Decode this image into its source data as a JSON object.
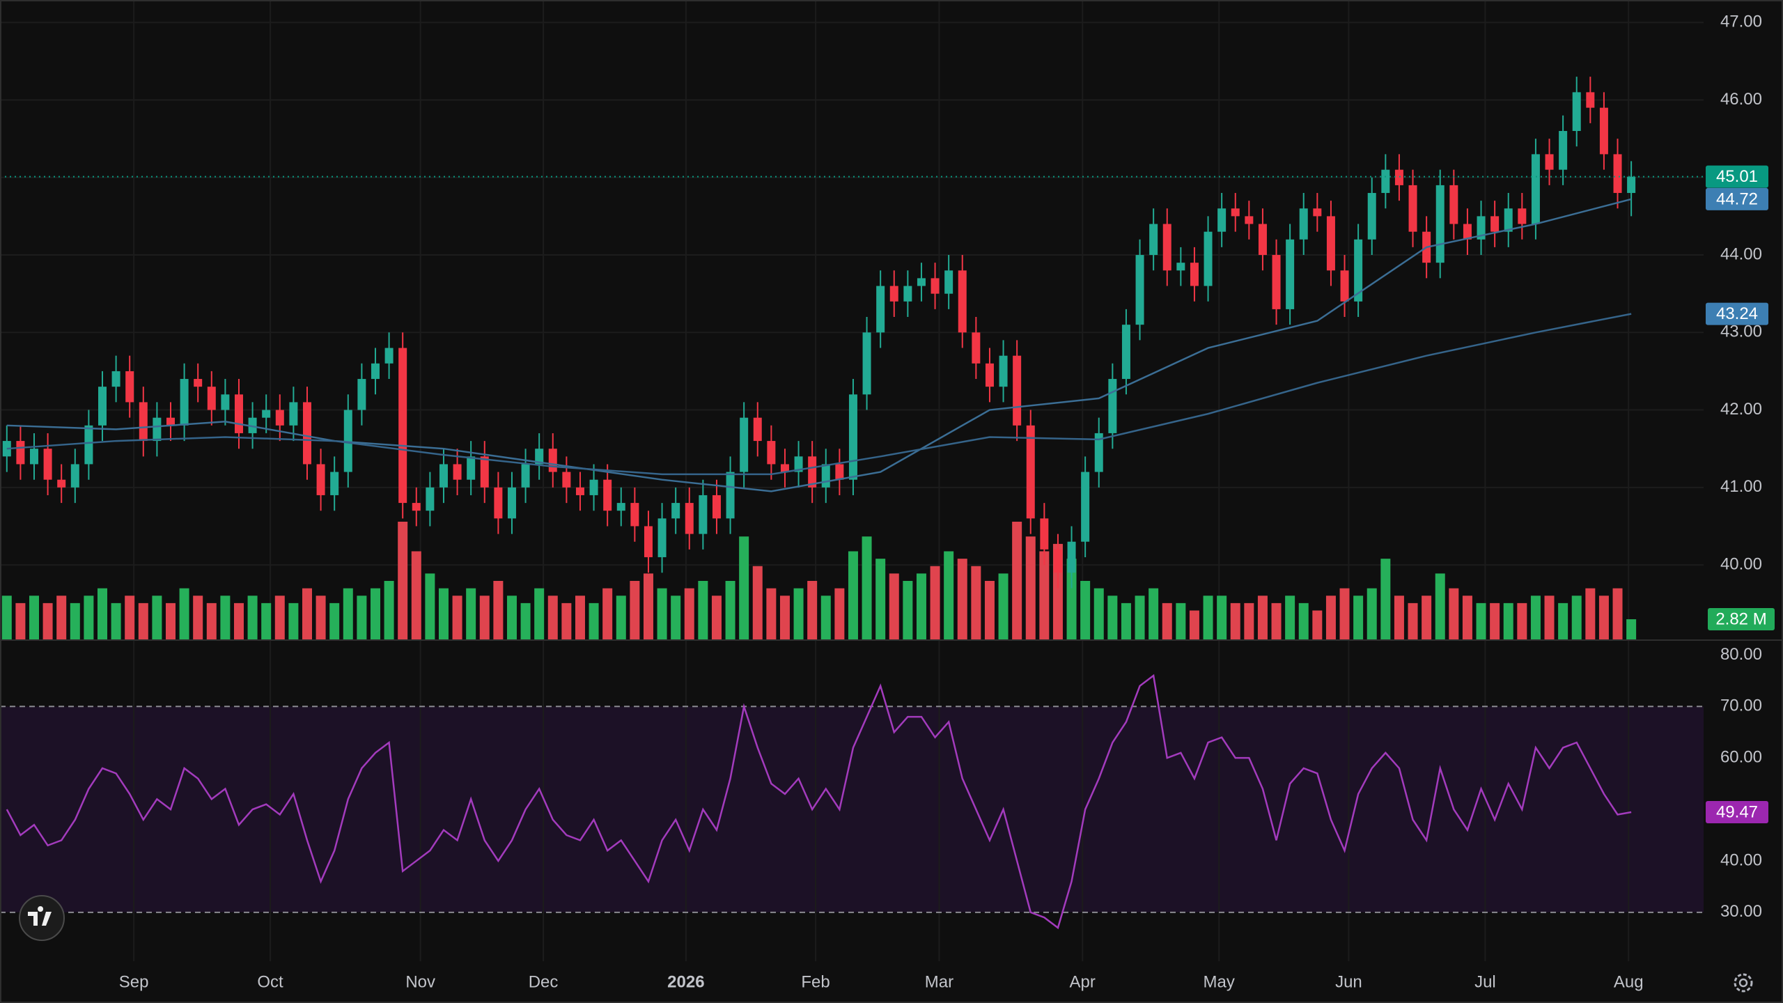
{
  "chart_data": {
    "type": "candlestick",
    "up_color": "#22ab94",
    "down_color": "#f23645",
    "volume_up_color": "#26b05a",
    "volume_down_color": "#e0444e",
    "xlim": [
      -0.5,
      124.3
    ],
    "xticks": [
      {
        "value": 9.3,
        "label": "Sep"
      },
      {
        "value": 19.3,
        "label": "Oct"
      },
      {
        "value": 30.3,
        "label": "Nov"
      },
      {
        "value": 39.3,
        "label": "Dec"
      },
      {
        "value": 49.75,
        "label": "2026"
      },
      {
        "value": 59.25,
        "label": "Feb"
      },
      {
        "value": 68.3,
        "label": "Mar"
      },
      {
        "value": 78.8,
        "label": "Apr"
      },
      {
        "value": 88.8,
        "label": "May"
      },
      {
        "value": 98.3,
        "label": "Jun"
      },
      {
        "value": 108.3,
        "label": "Jul"
      },
      {
        "value": 118.8,
        "label": "Aug"
      }
    ],
    "bold_xtick": 4,
    "ylim": [
      39.03,
      47.29
    ],
    "yticks": [
      {
        "value": 40,
        "label": "40.00"
      },
      {
        "value": 41,
        "label": "41.00"
      },
      {
        "value": 42,
        "label": "42.00"
      },
      {
        "value": 43,
        "label": "43.00"
      },
      {
        "value": 44,
        "label": "44.00"
      },
      {
        "value": 45,
        "label": "45.00"
      },
      {
        "value": 46,
        "label": "46.00"
      },
      {
        "value": 47,
        "label": "47.00"
      }
    ],
    "grid": true,
    "open": [
      41.4,
      41.6,
      41.3,
      41.5,
      41.1,
      41.0,
      41.3,
      41.8,
      42.3,
      42.5,
      42.1,
      41.6,
      41.9,
      41.8,
      42.4,
      42.3,
      42.0,
      42.2,
      41.7,
      41.9,
      42.0,
      41.8,
      42.1,
      41.3,
      40.9,
      41.2,
      42.0,
      42.4,
      42.6,
      42.8,
      40.8,
      40.7,
      41.0,
      41.3,
      41.1,
      41.4,
      41.0,
      40.6,
      41.0,
      41.3,
      41.5,
      41.2,
      41.0,
      40.9,
      41.1,
      40.7,
      40.8,
      40.5,
      40.1,
      40.6,
      40.8,
      40.4,
      40.9,
      40.6,
      41.2,
      41.9,
      41.6,
      41.3,
      41.2,
      41.4,
      41.0,
      41.3,
      41.1,
      42.2,
      43.0,
      43.6,
      43.4,
      43.6,
      43.7,
      43.5,
      43.8,
      43.0,
      42.6,
      42.3,
      42.7,
      41.8,
      40.6,
      40.2,
      39.9,
      40.3,
      41.2,
      41.7,
      42.4,
      43.1,
      44.0,
      44.4,
      43.8,
      43.9,
      43.6,
      44.3,
      44.6,
      44.5,
      44.4,
      44.0,
      43.3,
      44.2,
      44.6,
      44.5,
      43.8,
      43.4,
      44.2,
      44.8,
      45.1,
      44.9,
      44.3,
      43.9,
      44.9,
      44.4,
      44.2,
      44.5,
      44.3,
      44.6,
      44.4,
      45.3,
      45.1,
      45.6,
      46.1,
      45.9,
      45.3,
      44.8
    ],
    "high": [
      41.8,
      41.8,
      41.7,
      41.7,
      41.3,
      41.5,
      42.0,
      42.5,
      42.7,
      42.7,
      42.3,
      42.1,
      42.1,
      42.6,
      42.6,
      42.5,
      42.4,
      42.4,
      42.1,
      42.2,
      42.2,
      42.3,
      42.3,
      41.5,
      41.4,
      42.2,
      42.6,
      42.8,
      43.0,
      43.0,
      41.0,
      41.2,
      41.5,
      41.5,
      41.6,
      41.6,
      41.2,
      41.2,
      41.5,
      41.7,
      41.7,
      41.4,
      41.2,
      41.3,
      41.3,
      41.0,
      41.0,
      40.7,
      40.8,
      41.0,
      41.0,
      41.1,
      41.1,
      41.4,
      42.1,
      42.1,
      41.8,
      41.5,
      41.6,
      41.6,
      41.5,
      41.5,
      42.4,
      43.2,
      43.8,
      43.8,
      43.8,
      43.9,
      43.9,
      44.0,
      44.0,
      43.2,
      42.8,
      42.9,
      42.9,
      42.0,
      40.8,
      40.4,
      40.5,
      41.4,
      41.9,
      42.6,
      43.3,
      44.2,
      44.6,
      44.6,
      44.1,
      44.1,
      44.5,
      44.8,
      44.8,
      44.7,
      44.6,
      44.2,
      44.4,
      44.8,
      44.8,
      44.7,
      44.0,
      44.4,
      45.0,
      45.3,
      45.3,
      45.1,
      44.5,
      45.1,
      45.1,
      44.6,
      44.7,
      44.7,
      44.8,
      44.8,
      45.5,
      45.5,
      45.8,
      46.3,
      46.3,
      46.1,
      45.5,
      45.21
    ],
    "low": [
      41.2,
      41.1,
      41.1,
      40.9,
      40.8,
      40.8,
      41.1,
      41.6,
      42.1,
      41.9,
      41.4,
      41.4,
      41.6,
      41.6,
      42.1,
      41.8,
      41.8,
      41.5,
      41.5,
      41.7,
      41.6,
      41.6,
      41.1,
      40.7,
      40.7,
      41.0,
      41.8,
      42.2,
      42.4,
      40.6,
      40.5,
      40.5,
      40.8,
      40.9,
      40.9,
      40.8,
      40.4,
      40.4,
      40.8,
      41.1,
      41.0,
      40.8,
      40.7,
      40.7,
      40.5,
      40.5,
      40.3,
      39.9,
      39.9,
      40.4,
      40.2,
      40.2,
      40.4,
      40.4,
      41.0,
      41.4,
      41.1,
      41.0,
      41.0,
      40.8,
      40.8,
      40.9,
      40.9,
      42.0,
      42.8,
      43.2,
      43.2,
      43.4,
      43.3,
      43.3,
      42.8,
      42.4,
      42.1,
      42.1,
      41.6,
      40.4,
      40.0,
      39.7,
      39.7,
      40.1,
      41.0,
      41.5,
      42.2,
      42.9,
      43.8,
      43.6,
      43.6,
      43.4,
      43.4,
      44.1,
      44.3,
      44.2,
      43.8,
      43.1,
      43.1,
      44.0,
      44.3,
      43.6,
      43.2,
      43.2,
      44.0,
      44.6,
      44.7,
      44.1,
      43.7,
      43.7,
      44.2,
      44.0,
      44.0,
      44.1,
      44.1,
      44.2,
      44.2,
      44.9,
      44.9,
      45.4,
      45.7,
      45.1,
      44.6,
      44.5
    ],
    "close": [
      41.6,
      41.3,
      41.5,
      41.1,
      41.0,
      41.3,
      41.8,
      42.3,
      42.5,
      42.1,
      41.6,
      41.9,
      41.8,
      42.4,
      42.3,
      42.0,
      42.2,
      41.7,
      41.9,
      42.0,
      41.8,
      42.1,
      41.3,
      40.9,
      41.2,
      42.0,
      42.4,
      42.6,
      42.8,
      40.8,
      40.7,
      41.0,
      41.3,
      41.1,
      41.4,
      41.0,
      40.6,
      41.0,
      41.3,
      41.5,
      41.2,
      41.0,
      40.9,
      41.1,
      40.7,
      40.8,
      40.5,
      40.1,
      40.6,
      40.8,
      40.4,
      40.9,
      40.6,
      41.2,
      41.9,
      41.6,
      41.3,
      41.2,
      41.4,
      41.0,
      41.3,
      41.1,
      42.2,
      43.0,
      43.6,
      43.4,
      43.6,
      43.7,
      43.5,
      43.8,
      43.0,
      42.6,
      42.3,
      42.7,
      41.8,
      40.6,
      40.2,
      39.9,
      40.3,
      41.2,
      41.7,
      42.4,
      43.1,
      44.0,
      44.4,
      43.8,
      43.9,
      43.6,
      44.3,
      44.6,
      44.5,
      44.4,
      44.0,
      43.3,
      44.2,
      44.6,
      44.5,
      43.8,
      43.4,
      44.2,
      44.8,
      45.1,
      44.9,
      44.3,
      43.9,
      44.9,
      44.4,
      44.2,
      44.5,
      44.3,
      44.6,
      44.4,
      45.3,
      45.1,
      45.6,
      46.1,
      45.9,
      45.3,
      44.8,
      45.01
    ],
    "volume": [
      6,
      5,
      6,
      5,
      6,
      5,
      6,
      7,
      5,
      6,
      5,
      6,
      5,
      7,
      6,
      5,
      6,
      5,
      6,
      5,
      6,
      5,
      7,
      6,
      5,
      7,
      6,
      7,
      8,
      16,
      12,
      9,
      7,
      6,
      7,
      6,
      8,
      6,
      5,
      7,
      6,
      5,
      6,
      5,
      7,
      6,
      8,
      9,
      7,
      6,
      7,
      8,
      6,
      8,
      14,
      10,
      7,
      6,
      7,
      8,
      6,
      7,
      12,
      14,
      11,
      9,
      8,
      9,
      10,
      12,
      11,
      10,
      8,
      9,
      16,
      14,
      12,
      13,
      11,
      8,
      7,
      6,
      5,
      6,
      7,
      5,
      5,
      4,
      6,
      6,
      5,
      5,
      6,
      5,
      6,
      5,
      4,
      6,
      7,
      6,
      7,
      11,
      6,
      5,
      6,
      9,
      7,
      6,
      5,
      5,
      5,
      5,
      6,
      6,
      5,
      6,
      7,
      6,
      7,
      2.82
    ],
    "moving_averages": [
      {
        "color": "#3b6e95",
        "x": [
          0,
          8,
          16,
          24,
          32,
          40,
          48,
          56,
          64,
          72,
          80,
          88,
          96,
          104,
          112,
          119
        ],
        "values": [
          41.8,
          41.75,
          41.85,
          41.6,
          41.5,
          41.3,
          41.1,
          40.95,
          41.2,
          42.0,
          42.15,
          42.8,
          43.15,
          44.1,
          44.4,
          44.72
        ]
      },
      {
        "color": "#35648a",
        "x": [
          0,
          8,
          16,
          24,
          32,
          40,
          48,
          56,
          64,
          72,
          80,
          88,
          96,
          104,
          112,
          119
        ],
        "values": [
          41.5,
          41.6,
          41.65,
          41.6,
          41.42,
          41.27,
          41.17,
          41.17,
          41.4,
          41.65,
          41.62,
          41.95,
          42.35,
          42.7,
          43.0,
          43.24
        ]
      }
    ],
    "rsi": {
      "color": "#a33bbd",
      "band_color": "#1c1126",
      "ylim": [
        20.5,
        82.9
      ],
      "yticks": [
        {
          "value": 30,
          "label": "30.00"
        },
        {
          "value": 40,
          "label": "40.00"
        },
        {
          "value": 50,
          "label": "50.00"
        },
        {
          "value": 60,
          "label": "60.00"
        },
        {
          "value": 70,
          "label": "70.00"
        },
        {
          "value": 80,
          "label": "80.00"
        }
      ],
      "upper": 70,
      "lower": 30,
      "values": [
        50,
        45,
        47,
        43,
        44,
        48,
        54,
        58,
        57,
        53,
        48,
        52,
        50,
        58,
        56,
        52,
        54,
        47,
        50,
        51,
        49,
        53,
        44,
        36,
        42,
        52,
        58,
        61,
        63,
        38,
        40,
        42,
        46,
        44,
        52,
        44,
        40,
        44,
        50,
        54,
        48,
        45,
        44,
        48,
        42,
        44,
        40,
        36,
        44,
        48,
        42,
        50,
        46,
        56,
        70,
        62,
        55,
        53,
        56,
        50,
        54,
        50,
        62,
        68,
        74,
        65,
        68,
        68,
        64,
        67,
        56,
        50,
        44,
        50,
        40,
        30,
        29,
        27,
        36,
        50,
        56,
        63,
        67,
        74,
        76,
        60,
        61,
        56,
        63,
        64,
        60,
        60,
        54,
        44,
        55,
        58,
        57,
        48,
        42,
        53,
        58,
        61,
        58,
        48,
        44,
        58,
        50,
        46,
        54,
        48,
        55,
        50,
        62,
        58,
        62,
        63,
        58,
        53,
        49,
        49.47
      ]
    },
    "tags": [
      {
        "value": 45.01,
        "label": "45.01",
        "color": "#089981",
        "pane": "price",
        "line": true
      },
      {
        "value": 44.72,
        "label": "44.72",
        "color": "#3d7fb3",
        "pane": "price"
      },
      {
        "value": 43.24,
        "label": "43.24",
        "color": "#3d7fb3",
        "pane": "price"
      },
      {
        "value": 2.82,
        "label": "2.82 M",
        "color": "#22ab5a",
        "pane": "volume"
      },
      {
        "value": 49.47,
        "label": "49.47",
        "color": "#9c27b0",
        "pane": "rsi"
      }
    ]
  }
}
